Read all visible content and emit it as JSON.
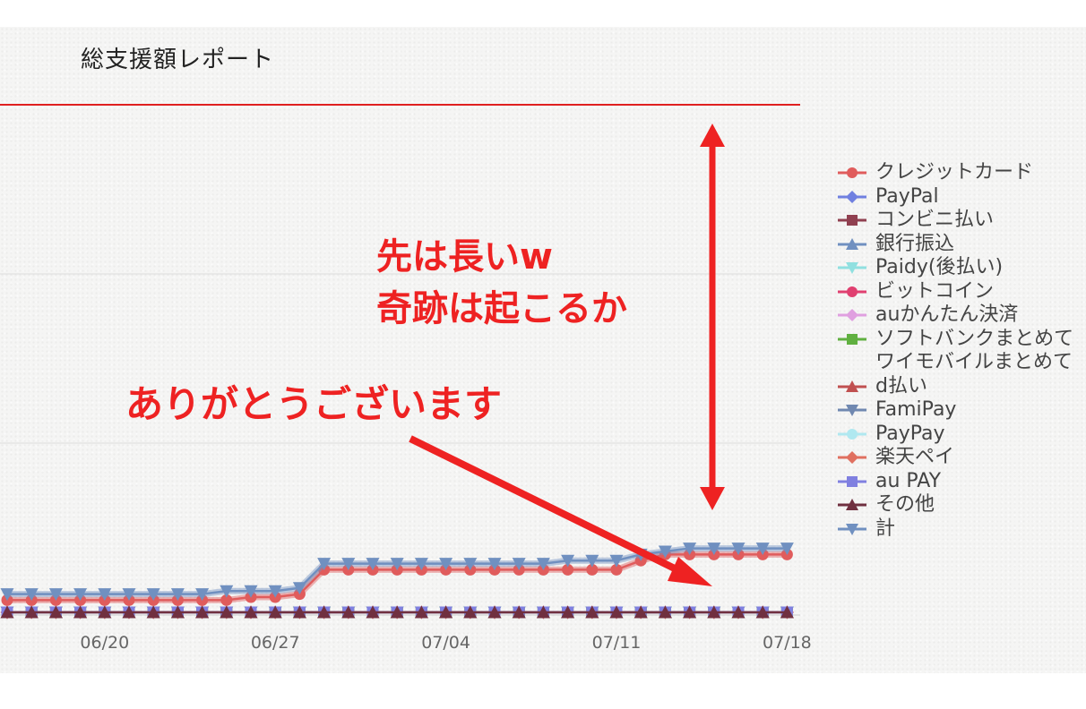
{
  "chart_data": {
    "type": "line",
    "title": "総支援額レポート",
    "x_ticks": [
      "06/20",
      "06/27",
      "07/04",
      "07/11",
      "07/18"
    ],
    "grid": true,
    "legend_position": "right",
    "series": [
      {
        "name": "クレジットカード",
        "color": "#e05c5c",
        "marker": "circle",
        "values": [
          4,
          4,
          4,
          4,
          4,
          4,
          4,
          4,
          4,
          4,
          5,
          5,
          6,
          14,
          14,
          14,
          14,
          14,
          14,
          14,
          14,
          14,
          14,
          14,
          14,
          14,
          17,
          19,
          19,
          19,
          19,
          19,
          19
        ]
      },
      {
        "name": "PayPal",
        "color": "#7080e0",
        "marker": "diamond",
        "values": "flat-zero"
      },
      {
        "name": "コンビニ払い",
        "color": "#904050",
        "marker": "square",
        "values": "flat-zero"
      },
      {
        "name": "銀行振込",
        "color": "#7090c0",
        "marker": "triangle-up",
        "values": "flat-zero"
      },
      {
        "name": "Paidy(後払い)",
        "color": "#90e0e0",
        "marker": "triangle-down",
        "values": "flat-zero"
      },
      {
        "name": "ビットコイン",
        "color": "#e04070",
        "marker": "circle",
        "values": "flat-zero"
      },
      {
        "name": "auかんたん決済",
        "color": "#e0a0e0",
        "marker": "diamond",
        "values": "flat-zero"
      },
      {
        "name": "ソフトバンクまとめて",
        "color": "#60b040",
        "marker": "square",
        "values": "flat-zero"
      },
      {
        "name": "ワイモバイルまとめて",
        "color": "",
        "marker": "none",
        "values": "flat-zero"
      },
      {
        "name": "d払い",
        "color": "#c05050",
        "marker": "triangle-up",
        "values": "flat-zero"
      },
      {
        "name": "FamiPay",
        "color": "#7088b0",
        "marker": "triangle-down",
        "values": "flat-zero"
      },
      {
        "name": "PayPay",
        "color": "#b0e8f0",
        "marker": "circle",
        "values": "flat-zero"
      },
      {
        "name": "楽天ペイ",
        "color": "#e07060",
        "marker": "diamond",
        "values": "flat-zero"
      },
      {
        "name": "au PAY",
        "color": "#8080e0",
        "marker": "square",
        "values": "flat-zero"
      },
      {
        "name": "その他",
        "color": "#703040",
        "marker": "triangle-up",
        "values": "flat-zero"
      },
      {
        "name": "計",
        "color": "#7090c0",
        "marker": "triangle-down",
        "values": [
          6,
          6,
          6,
          6,
          6,
          6,
          6,
          6,
          6,
          7,
          7,
          7,
          8,
          16,
          16,
          16,
          16,
          16,
          16,
          16,
          16,
          16,
          16,
          17,
          17,
          17,
          19,
          20,
          21,
          21,
          21,
          21,
          21
        ]
      }
    ],
    "goal_line_color": "#e02020"
  },
  "legend_overflow_note_hidden": false,
  "annotations": {
    "line1": "先は長いw",
    "line2": "奇跡は起こるか",
    "thanks": "ありがとうございます"
  },
  "annotation_color": "#ee2222"
}
